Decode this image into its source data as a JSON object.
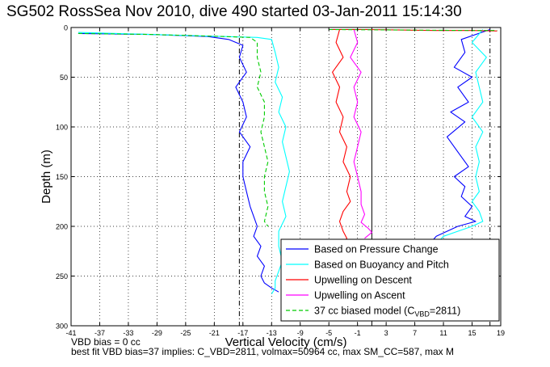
{
  "chart_data": {
    "type": "line",
    "title": "SG502 RossSea Nov 2010, dive 490 started 03-Jan-2011 15:14:30",
    "xlabel": "Vertical Velocity (cm/s)",
    "ylabel": "Depth (m)",
    "xlim": [
      -41,
      19
    ],
    "ylim": [
      300,
      0
    ],
    "xticks": [
      -41,
      -37,
      -33,
      -29,
      -25,
      -21,
      -17,
      -13,
      -9,
      -5,
      -1,
      3,
      7,
      11,
      15,
      19
    ],
    "yticks": [
      0,
      50,
      100,
      150,
      200,
      250,
      300
    ],
    "grid": true,
    "legend_position": "bottom-right",
    "legend": [
      {
        "label": "Based on Pressure Change",
        "color": "#0000ff",
        "dash": "solid"
      },
      {
        "label": "Based on Buoyancy and Pitch",
        "color": "#00ffff",
        "dash": "solid"
      },
      {
        "label": "Upwelling on Descent",
        "color": "#ff0000",
        "dash": "solid"
      },
      {
        "label": "Upwelling on Ascent",
        "color": "#ff00ff",
        "dash": "solid"
      },
      {
        "label": "37 cc biased model (C",
        "sub": "VBD",
        "suffix": "=2811)",
        "color": "#00cc00",
        "dash": "dashed"
      }
    ],
    "series": [
      {
        "color": "#0000ff",
        "dash": "solid",
        "x": [
          -40,
          -30,
          -22,
          -19,
          -17,
          -17.5,
          -16.5,
          -18,
          -17,
          -16.5,
          -17.5,
          -16,
          -17,
          -17,
          -16.5,
          -16,
          -15.5,
          -15,
          -15.5,
          -14.5,
          -15,
          -14,
          -14.5,
          -14,
          -13,
          -12
        ],
        "y": [
          6,
          7,
          9,
          12,
          18,
          30,
          45,
          60,
          75,
          90,
          105,
          120,
          135,
          150,
          165,
          180,
          190,
          200,
          210,
          220,
          230,
          240,
          250,
          257,
          262,
          266
        ]
      },
      {
        "color": "#00ffff",
        "dash": "solid",
        "x": [
          -40,
          -30,
          -20,
          -15,
          -13,
          -12.5,
          -12,
          -12.5,
          -11.5,
          -12,
          -11,
          -11.5,
          -11,
          -10.5,
          -11,
          -11.5,
          -11,
          -12,
          -12,
          -11.5,
          -12,
          -12.5,
          -12.5,
          -13
        ],
        "y": [
          5,
          7,
          9,
          10,
          12,
          25,
          40,
          55,
          70,
          85,
          100,
          115,
          130,
          145,
          160,
          175,
          190,
          205,
          220,
          235,
          245,
          255,
          262,
          268
        ]
      },
      {
        "color": "#ff0000",
        "dash": "solid",
        "x": [
          -3.5,
          -4,
          -3,
          -4.5,
          -3.5,
          -4,
          -3,
          -3.5,
          -2.5,
          -3,
          -2,
          -2.5,
          -2,
          -3,
          -3.5,
          -3,
          -2.5,
          -3
        ],
        "y": [
          2,
          15,
          30,
          45,
          60,
          75,
          90,
          105,
          120,
          135,
          150,
          165,
          175,
          185,
          195,
          205,
          212,
          218
        ]
      },
      {
        "color": "#ff00ff",
        "dash": "solid",
        "x": [
          -1.5,
          -1,
          -2,
          -0.5,
          -1.5,
          -1,
          -1.5,
          -0.5,
          -1,
          -1.5,
          -1,
          -0.5,
          -0.5,
          0,
          -0.5,
          0.5,
          1,
          0
        ],
        "y": [
          2,
          15,
          30,
          45,
          60,
          75,
          90,
          105,
          120,
          135,
          150,
          165,
          178,
          188,
          196,
          202,
          206,
          212
        ]
      },
      {
        "color": "#0000ff",
        "dash": "solid",
        "x": [
          17.5,
          13.5,
          14,
          12.5,
          15,
          13,
          14.5,
          12,
          14,
          11.5,
          13,
          14.5,
          12.5,
          14,
          13.5,
          15,
          14,
          15.5,
          13,
          11.5,
          10,
          9.5
        ],
        "y": [
          2,
          12,
          25,
          40,
          50,
          60,
          75,
          85,
          95,
          110,
          125,
          140,
          150,
          160,
          170,
          180,
          190,
          195,
          200,
          205,
          210,
          214
        ]
      },
      {
        "color": "#00ffff",
        "dash": "solid",
        "x": [
          16.5,
          15,
          17,
          15.5,
          16,
          16.5,
          15,
          16.5,
          15.5,
          16,
          15.5,
          16,
          15,
          16,
          16.5,
          15,
          13,
          11,
          10.5
        ],
        "y": [
          2,
          15,
          30,
          45,
          60,
          75,
          90,
          105,
          120,
          135,
          150,
          165,
          175,
          185,
          195,
          200,
          205,
          210,
          214
        ]
      },
      {
        "color": "#ff0000",
        "dash": "solid",
        "x": [
          -5,
          0,
          5,
          10,
          15,
          18.5
        ],
        "y": [
          2,
          2,
          2.5,
          3,
          3,
          3.5
        ]
      },
      {
        "color": "#00cc00",
        "dash": "dashed",
        "x": [
          -40,
          -30,
          -20,
          -16,
          -15,
          -15,
          -14.5,
          -15,
          -14,
          -14,
          -14.5,
          -14,
          -13.5,
          -14,
          -14,
          -13.5,
          -14,
          -13.5
        ],
        "y": [
          6,
          7,
          9,
          10,
          15,
          30,
          45,
          60,
          75,
          90,
          105,
          120,
          135,
          150,
          165,
          180,
          195,
          200
        ]
      },
      {
        "color": "#00cc00",
        "dash": "dashed",
        "x": [
          -5,
          5,
          15,
          18.5
        ],
        "y": [
          2,
          2.5,
          3,
          3
        ]
      }
    ],
    "reference_lines": [
      {
        "x": -17.5,
        "color": "#000000",
        "dash": "dashdot"
      },
      {
        "x": 17.5,
        "color": "#000000",
        "dash": "dashdot"
      },
      {
        "x": 1,
        "color": "#000000",
        "dash": "solid"
      }
    ]
  },
  "notes": {
    "line1": "VBD bias = 0 cc",
    "line2": "best fit VBD bias=37 implies: C_VBD=2811, volmax=50964 cc, max SM_CC=587, max M"
  }
}
